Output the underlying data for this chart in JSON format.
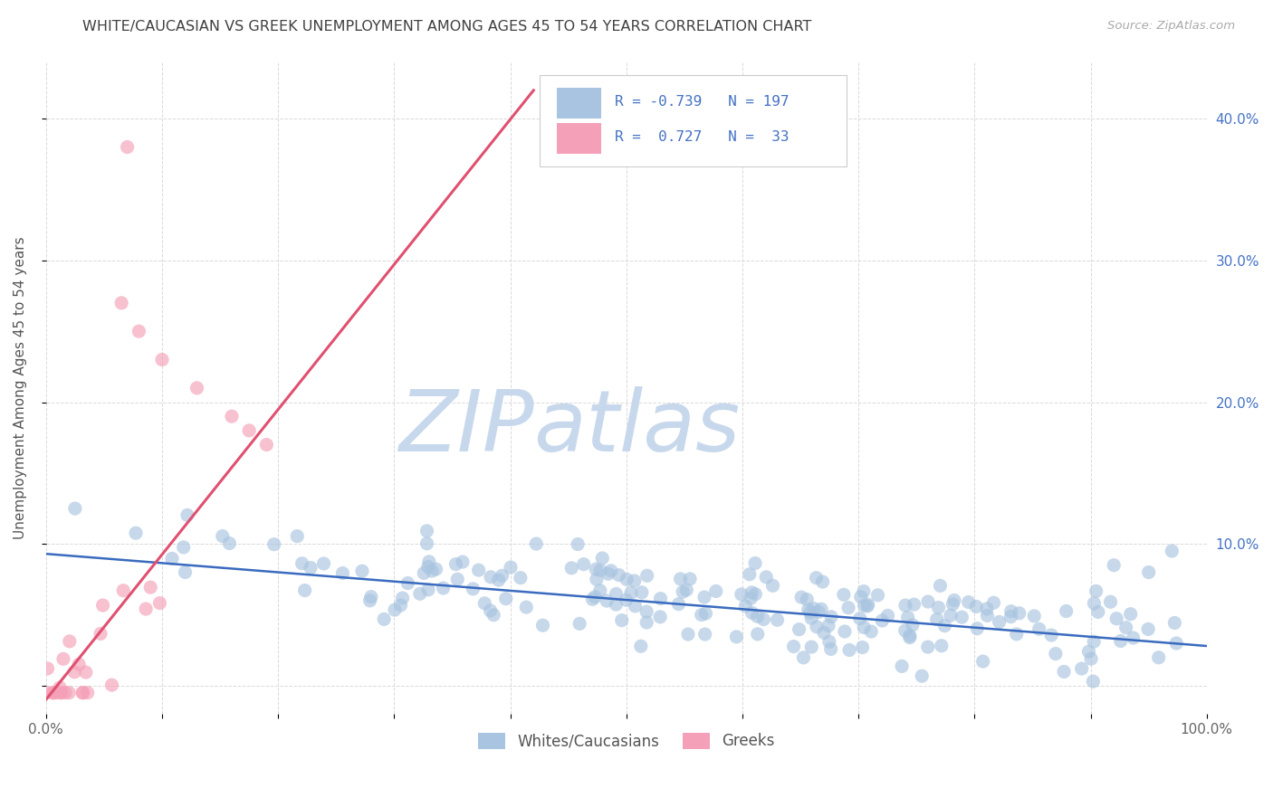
{
  "title": "WHITE/CAUCASIAN VS GREEK UNEMPLOYMENT AMONG AGES 45 TO 54 YEARS CORRELATION CHART",
  "source": "Source: ZipAtlas.com",
  "ylabel": "Unemployment Among Ages 45 to 54 years",
  "watermark_zip": "ZIP",
  "watermark_atlas": "atlas",
  "xlim": [
    0,
    1.0
  ],
  "ylim": [
    -0.02,
    0.44
  ],
  "xticks": [
    0,
    0.1,
    0.2,
    0.3,
    0.4,
    0.5,
    0.6,
    0.7,
    0.8,
    0.9,
    1.0
  ],
  "xticklabels": [
    "0.0%",
    "",
    "",
    "",
    "",
    "",
    "",
    "",
    "",
    "",
    "100.0%"
  ],
  "yticks": [
    0.0,
    0.1,
    0.2,
    0.3,
    0.4
  ],
  "yticklabels": [
    "",
    "10.0%",
    "20.0%",
    "30.0%",
    "40.0%"
  ],
  "blue_R": -0.739,
  "blue_N": 197,
  "pink_R": 0.727,
  "pink_N": 33,
  "blue_color": "#a8c4e0",
  "pink_color": "#f4a0b8",
  "blue_line_color": "#3a6bbf",
  "pink_line_color": "#e05070",
  "legend_label_blue": "Whites/Caucasians",
  "legend_label_pink": "Greeks",
  "background_color": "#ffffff",
  "grid_color": "#d0d0d0",
  "title_color": "#404040",
  "watermark_zip_color": "#c8d8ec",
  "watermark_atlas_color": "#c8d8ec",
  "tick_color": "#4472c4",
  "blue_trend_x0": 0.0,
  "blue_trend_x1": 1.0,
  "blue_trend_y0": 0.093,
  "blue_trend_y1": 0.028,
  "pink_trend_x0": -0.01,
  "pink_trend_x1": 0.42,
  "pink_trend_y0": -0.02,
  "pink_trend_y1": 0.42
}
